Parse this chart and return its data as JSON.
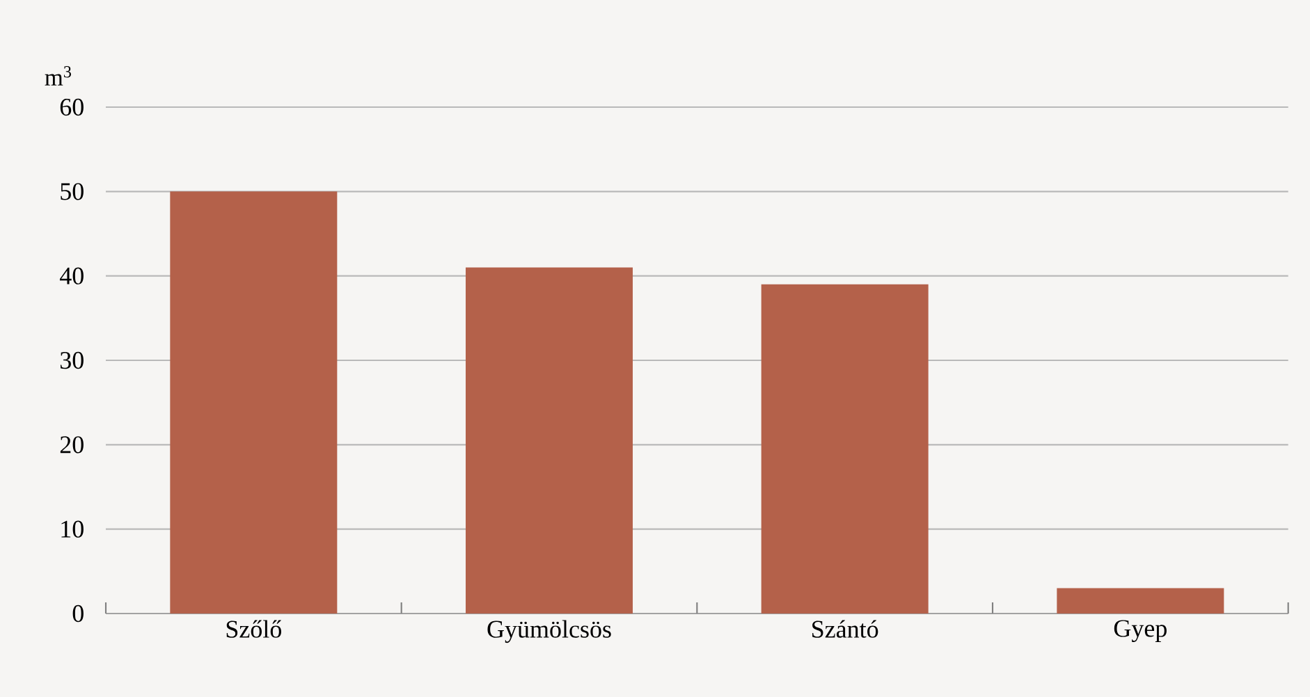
{
  "chart_data": {
    "type": "bar",
    "ylabel": "m$^{3}$",
    "categories": [
      "Szőlő",
      "Gyümölcsös",
      "Szántó",
      "Gyep"
    ],
    "values": [
      50,
      41,
      39,
      3
    ],
    "color": "#b4614a",
    "ylim": [
      0,
      60
    ],
    "yticks": [
      0,
      10,
      20,
      30,
      40,
      50,
      60
    ],
    "grid": "y"
  }
}
